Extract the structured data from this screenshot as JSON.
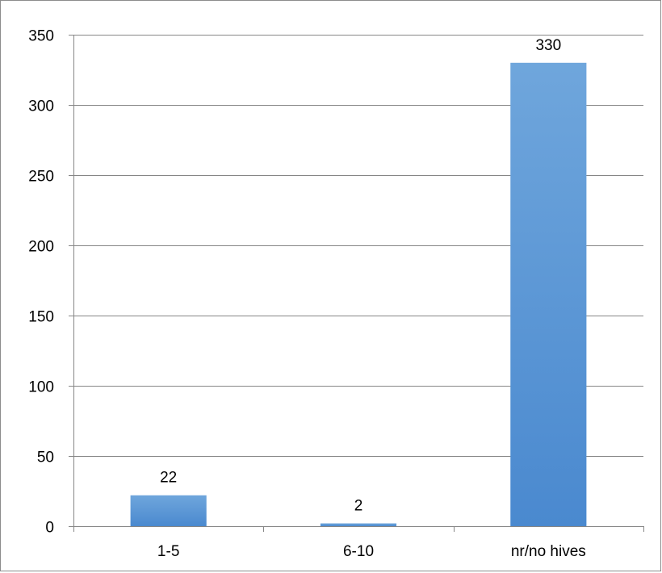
{
  "chart_data": {
    "type": "bar",
    "categories": [
      "1-5",
      "6-10",
      "nr/no hives"
    ],
    "values": [
      22,
      2,
      330
    ],
    "data_labels": [
      "22",
      "2",
      "330"
    ],
    "title": "",
    "xlabel": "",
    "ylabel": "",
    "ylim": [
      0,
      350
    ],
    "y_ticks": [
      0,
      50,
      100,
      150,
      200,
      250,
      300,
      350
    ],
    "y_tick_labels": [
      "0",
      "50",
      "100",
      "150",
      "200",
      "250",
      "300",
      "350"
    ],
    "grid": true,
    "legend": "none",
    "colors": {
      "bar_top": "#6fa6dc",
      "bar_bottom": "#4a89cf",
      "gridline": "#868686",
      "axis": "#868686"
    }
  }
}
